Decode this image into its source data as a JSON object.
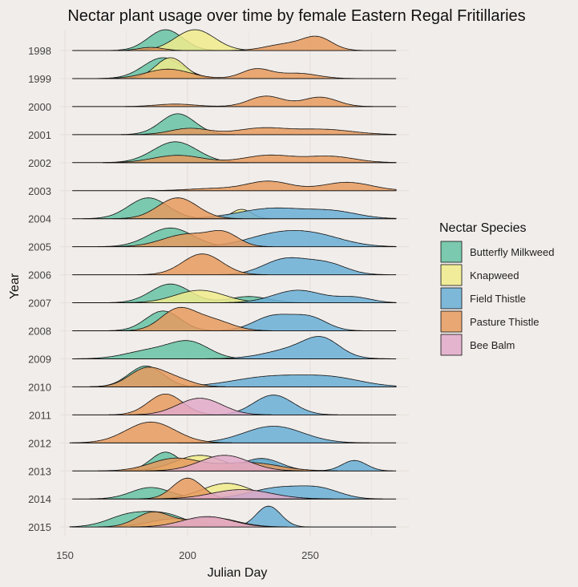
{
  "chart_data": {
    "type": "ridgeline",
    "title": "Nectar plant usage over time by female Eastern Regal Fritillaries",
    "xlabel": "Julian Day",
    "ylabel": "Year",
    "xlim": [
      150,
      290
    ],
    "x_ticks": [
      150,
      200,
      250
    ],
    "grid": true,
    "legend": {
      "title": "Nectar Species",
      "position": "right"
    },
    "species": [
      {
        "name": "Butterfly Milkweed",
        "color": "#66c2a5"
      },
      {
        "name": "Knapweed",
        "color": "#f0eb8c"
      },
      {
        "name": "Field Thistle",
        "color": "#6aaed6"
      },
      {
        "name": "Pasture Thistle",
        "color": "#e69a5e"
      },
      {
        "name": "Bee Balm",
        "color": "#e2a9c9"
      }
    ],
    "years": [
      "1998",
      "1999",
      "2000",
      "2001",
      "2002",
      "2003",
      "2004",
      "2005",
      "2006",
      "2007",
      "2008",
      "2009",
      "2010",
      "2011",
      "2012",
      "2013",
      "2014",
      "2015"
    ],
    "ridges": [
      {
        "year": "1998",
        "densities": [
          {
            "species": "Butterfly Milkweed",
            "peaks": [
              [
                191,
                7,
                1.0
              ]
            ]
          },
          {
            "species": "Knapweed",
            "peaks": [
              [
                203,
                8,
                1.0
              ]
            ]
          },
          {
            "species": "Pasture Thistle",
            "peaks": [
              [
                185,
                5,
                0.15
              ],
              [
                240,
                8,
                0.3
              ],
              [
                253,
                6,
                0.6
              ]
            ]
          }
        ]
      },
      {
        "year": "1999",
        "densities": [
          {
            "species": "Butterfly Milkweed",
            "peaks": [
              [
                190,
                8,
                1.0
              ]
            ]
          },
          {
            "species": "Knapweed",
            "peaks": [
              [
                193,
                6,
                1.0
              ]
            ]
          },
          {
            "species": "Pasture Thistle",
            "peaks": [
              [
                192,
                9,
                0.45
              ],
              [
                228,
                6,
                0.45
              ],
              [
                245,
                8,
                0.25
              ]
            ]
          }
        ]
      },
      {
        "year": "2000",
        "densities": [
          {
            "species": "Pasture Thistle",
            "peaks": [
              [
                195,
                8,
                0.12
              ],
              [
                232,
                7,
                0.5
              ],
              [
                254,
                7,
                0.45
              ]
            ]
          }
        ]
      },
      {
        "year": "2001",
        "densities": [
          {
            "species": "Butterfly Milkweed",
            "peaks": [
              [
                196,
                7,
                1.0
              ]
            ]
          },
          {
            "species": "Pasture Thistle",
            "peaks": [
              [
                201,
                8,
                0.3
              ],
              [
                230,
                10,
                0.3
              ],
              [
                255,
                12,
                0.25
              ]
            ]
          }
        ]
      },
      {
        "year": "2002",
        "densities": [
          {
            "species": "Butterfly Milkweed",
            "peaks": [
              [
                195,
                9,
                1.0
              ]
            ]
          },
          {
            "species": "Pasture Thistle",
            "peaks": [
              [
                196,
                10,
                0.35
              ],
              [
                233,
                10,
                0.35
              ],
              [
                258,
                10,
                0.3
              ]
            ]
          }
        ]
      },
      {
        "year": "2003",
        "densities": [
          {
            "species": "Pasture Thistle",
            "peaks": [
              [
                210,
                10,
                0.1
              ],
              [
                233,
                9,
                0.45
              ],
              [
                265,
                10,
                0.4
              ]
            ]
          }
        ]
      },
      {
        "year": "2004",
        "densities": [
          {
            "species": "Butterfly Milkweed",
            "peaks": [
              [
                184,
                8,
                1.0
              ]
            ]
          },
          {
            "species": "Pasture Thistle",
            "peaks": [
              [
                196,
                8,
                1.0
              ]
            ]
          },
          {
            "species": "Knapweed",
            "peaks": [
              [
                222,
                4,
                0.45
              ]
            ]
          },
          {
            "species": "Field Thistle",
            "peaks": [
              [
                235,
                14,
                0.5
              ],
              [
                260,
                10,
                0.3
              ]
            ]
          }
        ]
      },
      {
        "year": "2005",
        "densities": [
          {
            "species": "Butterfly Milkweed",
            "peaks": [
              [
                193,
                9,
                0.9
              ]
            ]
          },
          {
            "species": "Pasture Thistle",
            "peaks": [
              [
                200,
                10,
                0.6
              ],
              [
                215,
                6,
                0.55
              ]
            ]
          },
          {
            "species": "Field Thistle",
            "peaks": [
              [
                235,
                12,
                0.5
              ],
              [
                252,
                12,
                0.5
              ]
            ]
          }
        ]
      },
      {
        "year": "2006",
        "densities": [
          {
            "species": "Pasture Thistle",
            "peaks": [
              [
                206,
                8,
                1.0
              ]
            ]
          },
          {
            "species": "Field Thistle",
            "peaks": [
              [
                240,
                9,
                0.75
              ],
              [
                257,
                8,
                0.5
              ]
            ]
          }
        ]
      },
      {
        "year": "2007",
        "densities": [
          {
            "species": "Butterfly Milkweed",
            "peaks": [
              [
                193,
                8,
                0.9
              ],
              [
                225,
                8,
                0.3
              ]
            ]
          },
          {
            "species": "Knapweed",
            "peaks": [
              [
                205,
                10,
                0.6
              ]
            ]
          },
          {
            "species": "Field Thistle",
            "peaks": [
              [
                245,
                10,
                0.6
              ],
              [
                268,
                7,
                0.25
              ]
            ]
          }
        ]
      },
      {
        "year": "2008",
        "densities": [
          {
            "species": "Butterfly Milkweed",
            "peaks": [
              [
                190,
                7,
                0.95
              ]
            ]
          },
          {
            "species": "Pasture Thistle",
            "peaks": [
              [
                196,
                7,
                1.0
              ],
              [
                210,
                8,
                0.5
              ]
            ]
          },
          {
            "species": "Field Thistle",
            "peaks": [
              [
                235,
                8,
                0.7
              ],
              [
                250,
                7,
                0.6
              ]
            ]
          }
        ]
      },
      {
        "year": "2009",
        "densities": [
          {
            "species": "Butterfly Milkweed",
            "peaks": [
              [
                185,
                10,
                0.4
              ],
              [
                201,
                8,
                0.75
              ]
            ]
          },
          {
            "species": "Field Thistle",
            "peaks": [
              [
                245,
                12,
                0.5
              ],
              [
                255,
                7,
                0.7
              ]
            ]
          }
        ]
      },
      {
        "year": "2010",
        "densities": [
          {
            "species": "Butterfly Milkweed",
            "peaks": [
              [
                183,
                7,
                1.0
              ]
            ]
          },
          {
            "species": "Pasture Thistle",
            "peaks": [
              [
                183,
                7,
                0.85
              ],
              [
                195,
                7,
                0.35
              ]
            ]
          },
          {
            "species": "Field Thistle",
            "peaks": [
              [
                235,
                16,
                0.5
              ],
              [
                260,
                12,
                0.35
              ]
            ]
          }
        ]
      },
      {
        "year": "2011",
        "densities": [
          {
            "species": "Pasture Thistle",
            "peaks": [
              [
                191,
                7,
                1.0
              ]
            ]
          },
          {
            "species": "Bee Balm",
            "peaks": [
              [
                205,
                9,
                0.8
              ]
            ]
          },
          {
            "species": "Field Thistle",
            "peaks": [
              [
                235,
                8,
                0.95
              ]
            ]
          }
        ]
      },
      {
        "year": "2012",
        "densities": [
          {
            "species": "Pasture Thistle",
            "peaks": [
              [
                185,
                10,
                1.0
              ]
            ]
          },
          {
            "species": "Field Thistle",
            "peaks": [
              [
                235,
                12,
                0.8
              ]
            ]
          }
        ]
      },
      {
        "year": "2013",
        "densities": [
          {
            "species": "Butterfly Milkweed",
            "peaks": [
              [
                191,
                6,
                0.9
              ],
              [
                230,
                6,
                0.55
              ]
            ]
          },
          {
            "species": "Knapweed",
            "peaks": [
              [
                205,
                10,
                0.75
              ]
            ]
          },
          {
            "species": "Pasture Thistle",
            "peaks": [
              [
                195,
                10,
                0.6
              ],
              [
                225,
                12,
                0.4
              ]
            ]
          },
          {
            "species": "Bee Balm",
            "peaks": [
              [
                215,
                10,
                0.75
              ]
            ]
          },
          {
            "species": "Field Thistle",
            "peaks": [
              [
                230,
                8,
                0.6
              ],
              [
                268,
                5,
                0.5
              ]
            ]
          }
        ]
      },
      {
        "year": "2014",
        "densities": [
          {
            "species": "Butterfly Milkweed",
            "peaks": [
              [
                185,
                8,
                0.55
              ],
              [
                225,
                12,
                0.3
              ]
            ]
          },
          {
            "species": "Pasture Thistle",
            "peaks": [
              [
                200,
                6,
                1.0
              ]
            ]
          },
          {
            "species": "Knapweed",
            "peaks": [
              [
                216,
                10,
                0.75
              ]
            ]
          },
          {
            "species": "Field Thistle",
            "peaks": [
              [
                238,
                12,
                0.55
              ],
              [
                255,
                8,
                0.35
              ]
            ]
          },
          {
            "species": "Bee Balm",
            "peaks": [
              [
                222,
                12,
                0.45
              ]
            ]
          }
        ]
      },
      {
        "year": "2015",
        "densities": [
          {
            "species": "Butterfly Milkweed",
            "peaks": [
              [
                177,
                9,
                0.6
              ],
              [
                192,
                8,
                0.5
              ]
            ]
          },
          {
            "species": "Pasture Thistle",
            "peaks": [
              [
                186,
                7,
                0.7
              ],
              [
                210,
                10,
                0.45
              ]
            ]
          },
          {
            "species": "Knapweed",
            "peaks": [
              [
                195,
                10,
                0.4
              ]
            ]
          },
          {
            "species": "Bee Balm",
            "peaks": [
              [
                208,
                10,
                0.5
              ]
            ]
          },
          {
            "species": "Field Thistle",
            "peaks": [
              [
                233,
                5,
                1.0
              ]
            ]
          }
        ]
      }
    ]
  }
}
